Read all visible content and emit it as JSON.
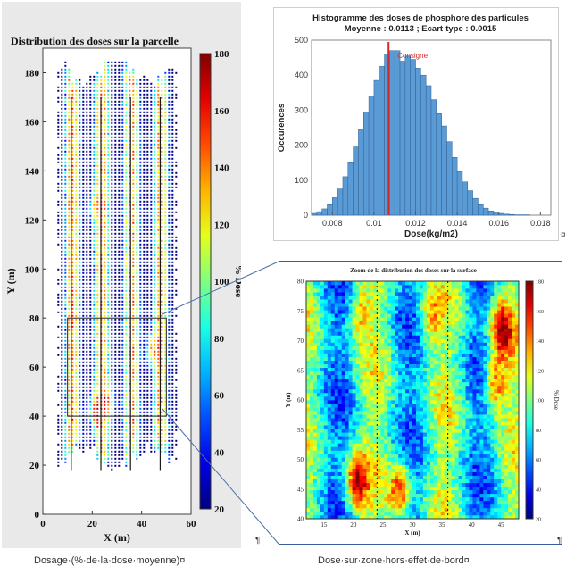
{
  "chart_data": [
    {
      "type": "heatmap",
      "title": "Distribution des doses sur la parcelle",
      "xlabel": "X (m)",
      "ylabel": "Y (m)",
      "xlim": [
        0,
        60
      ],
      "ylim": [
        0,
        190
      ],
      "x_ticks": [
        "0",
        "20",
        "40",
        "60"
      ],
      "y_ticks": [
        "0",
        "20",
        "40",
        "60",
        "80",
        "100",
        "120",
        "140",
        "160",
        "180"
      ],
      "colorbar": {
        "label": "% Dose",
        "range": [
          20,
          180
        ],
        "ticks": [
          "20",
          "40",
          "60",
          "80",
          "100",
          "120",
          "140",
          "160",
          "180"
        ],
        "colormap": "jet"
      },
      "zoom_box": {
        "x": [
          10,
          50
        ],
        "y": [
          40,
          80
        ]
      },
      "passes_x": [
        11.5,
        23.5,
        35.5,
        47.5
      ],
      "hotspots": [
        {
          "x": 20,
          "y": 42,
          "value": 175
        },
        {
          "x": 27,
          "y": 45,
          "value": 160
        },
        {
          "x": 43,
          "y": 67,
          "value": 175
        },
        {
          "x": 20,
          "y": 125,
          "value": 140
        }
      ]
    },
    {
      "type": "bar",
      "title": "Histogramme des doses de phosphore des particules",
      "subtitle": "Moyenne : 0.0113 ; Ecart-type : 0.0015",
      "xlabel": "Dose(kg/m2)",
      "ylabel": "Occurences",
      "xlim": [
        0.007,
        0.0185
      ],
      "ylim": [
        0,
        500
      ],
      "x_ticks": [
        "0.008",
        "0.01",
        "0.012",
        "0.014",
        "0.016",
        "0.018"
      ],
      "y_ticks": [
        "0",
        "100",
        "200",
        "300",
        "400",
        "500"
      ],
      "bin_width": 0.00025,
      "bin_start": 0.007,
      "counts": [
        5,
        10,
        18,
        30,
        50,
        75,
        110,
        150,
        195,
        245,
        295,
        340,
        385,
        425,
        460,
        470,
        470,
        440,
        455,
        445,
        420,
        400,
        370,
        330,
        290,
        255,
        210,
        165,
        125,
        95,
        70,
        48,
        30,
        20,
        12,
        8,
        5,
        3,
        2,
        1,
        1,
        1,
        0,
        0,
        0,
        0
      ],
      "reference_line": {
        "label": "Consigne",
        "x": 0.0107,
        "color": "#d42a2a"
      },
      "bar_color": "#5b9bd5"
    },
    {
      "type": "heatmap",
      "title": "Zoom de la distribution des doses sur la surface",
      "xlabel": "X (m)",
      "ylabel": "Y (m)",
      "xlim": [
        12,
        48
      ],
      "ylim": [
        40,
        80
      ],
      "x_ticks": [
        "15",
        "20",
        "25",
        "30",
        "35",
        "40",
        "45"
      ],
      "y_ticks": [
        "40",
        "45",
        "50",
        "55",
        "60",
        "65",
        "70",
        "75",
        "80"
      ],
      "colorbar": {
        "label": "% Dose",
        "range": [
          20,
          180
        ],
        "ticks": [
          "20",
          "40",
          "60",
          "80",
          "100",
          "120",
          "140",
          "160",
          "180"
        ],
        "colormap": "jet"
      },
      "dotted_lines_x": [
        24,
        36
      ]
    }
  ],
  "captions": {
    "left": "Dosage·(%·de·la·dose·moyenne)¤",
    "right": "Dose·sur·zone·hors·effet·de·bord¤"
  },
  "marks": {
    "pilcrow": "¶",
    "cell_end": "¤"
  }
}
